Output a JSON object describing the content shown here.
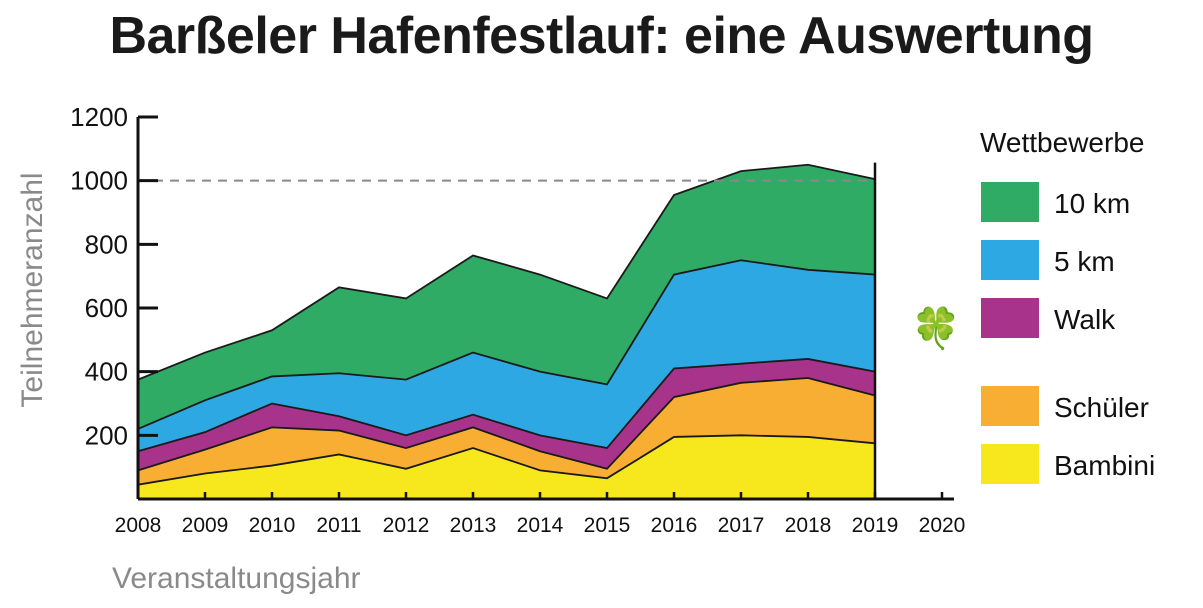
{
  "chart_data": {
    "type": "area",
    "stacked": true,
    "title": "Barßeler Hafenfestlauf: eine Auswertung",
    "xlabel": "Veranstaltungsjahr",
    "ylabel": "Teilnehmeranzahl",
    "x": [
      2008,
      2009,
      2010,
      2011,
      2012,
      2013,
      2014,
      2015,
      2016,
      2017,
      2018,
      2019
    ],
    "x_ticks": [
      "2008",
      "2009",
      "2010",
      "2011",
      "2012",
      "2013",
      "2014",
      "2015",
      "2016",
      "2017",
      "2018",
      "2019",
      "2020"
    ],
    "xlim": [
      2008,
      2020
    ],
    "y_ticks": [
      "200",
      "400",
      "600",
      "800",
      "1000",
      "1200"
    ],
    "ylim": [
      0,
      1200
    ],
    "reference_line": 1000,
    "legend_title": "Wettbewerbe",
    "legend_position": "right",
    "series": [
      {
        "name": "Bambini",
        "color": "#f7e81e",
        "values": [
          45,
          80,
          105,
          140,
          95,
          160,
          90,
          65,
          195,
          200,
          195,
          175
        ]
      },
      {
        "name": "Schüler",
        "color": "#f8ae33",
        "values": [
          45,
          75,
          120,
          75,
          65,
          65,
          60,
          30,
          125,
          165,
          185,
          150
        ]
      },
      {
        "name": "Walk",
        "color": "#a8338b",
        "values": [
          60,
          55,
          75,
          45,
          40,
          40,
          50,
          65,
          90,
          60,
          60,
          75
        ]
      },
      {
        "name": "5 km",
        "color": "#2ea8e2",
        "values": [
          70,
          100,
          85,
          135,
          175,
          195,
          200,
          200,
          295,
          325,
          280,
          305
        ]
      },
      {
        "name": "10 km",
        "color": "#2fab66",
        "values": [
          155,
          150,
          145,
          270,
          255,
          305,
          305,
          270,
          250,
          280,
          330,
          300
        ]
      }
    ],
    "legend_order": [
      "10 km",
      "5 km",
      "Walk",
      "Schüler",
      "Bambini"
    ]
  },
  "decoration": {
    "icon": "clover-icon",
    "glyph": "🍀"
  }
}
